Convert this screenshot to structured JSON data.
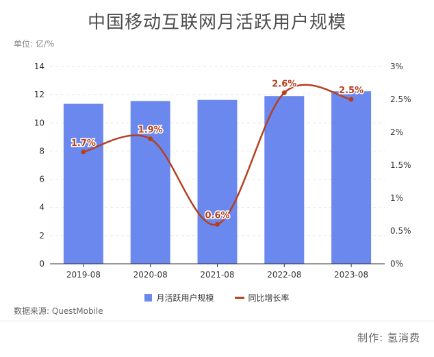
{
  "header": {
    "title": "中国移动互联网月活跃用户规模",
    "unit": "单位: 亿/%"
  },
  "footer": {
    "source": "数据来源: QuestMobile",
    "credit": "制作: 氢消费"
  },
  "colors": {
    "bar": "#6b88ee",
    "line": "#b5401f",
    "grid": "#e3e3e3",
    "axis": "#333333"
  },
  "chart_data": {
    "type": "bar",
    "title": "中国移动互联网月活跃用户规模",
    "categories": [
      "2019-08",
      "2020-08",
      "2021-08",
      "2022-08",
      "2023-08"
    ],
    "series": [
      {
        "name": "月活跃用户规模",
        "type": "bar",
        "axis": "left",
        "values": [
          11.35,
          11.55,
          11.63,
          11.9,
          12.24
        ]
      },
      {
        "name": "同比增长率",
        "type": "line",
        "axis": "right",
        "unit": "%",
        "values": [
          1.7,
          1.9,
          0.6,
          2.6,
          2.5
        ],
        "labels": [
          "1.7%",
          "1.9%",
          "0.6%",
          "2.6%",
          "2.5%"
        ]
      }
    ],
    "ylim_left": [
      0,
      14
    ],
    "yticks_left": [
      "0",
      "2",
      "4",
      "6",
      "8",
      "10",
      "12",
      "14"
    ],
    "ylim_right": [
      0,
      3
    ],
    "yticks_right": [
      "0%",
      "0.5%",
      "1%",
      "1.5%",
      "2%",
      "2.5%",
      "3%"
    ],
    "grid": true,
    "legend": "bottom-center"
  }
}
